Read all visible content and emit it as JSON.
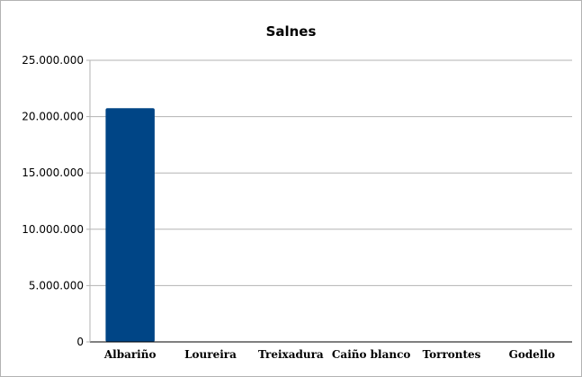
{
  "chart_data": {
    "type": "bar",
    "title": "Salnes",
    "xlabel": "",
    "ylabel": "",
    "categories": [
      "Albariño",
      "Loureira",
      "Treixadura",
      "Caiño blanco",
      "Torrontes",
      "Godello"
    ],
    "values": [
      20750000,
      0,
      0,
      0,
      0,
      0
    ],
    "ylim": [
      0,
      25000000
    ],
    "yticks": [
      0,
      5000000,
      10000000,
      15000000,
      20000000,
      25000000
    ],
    "ytick_labels": [
      "0",
      "5.000.000",
      "10.000.000",
      "15.000.000",
      "20.000.000",
      "25.000.000"
    ],
    "grid": true,
    "legend": "none",
    "bar_color": "#004586"
  }
}
